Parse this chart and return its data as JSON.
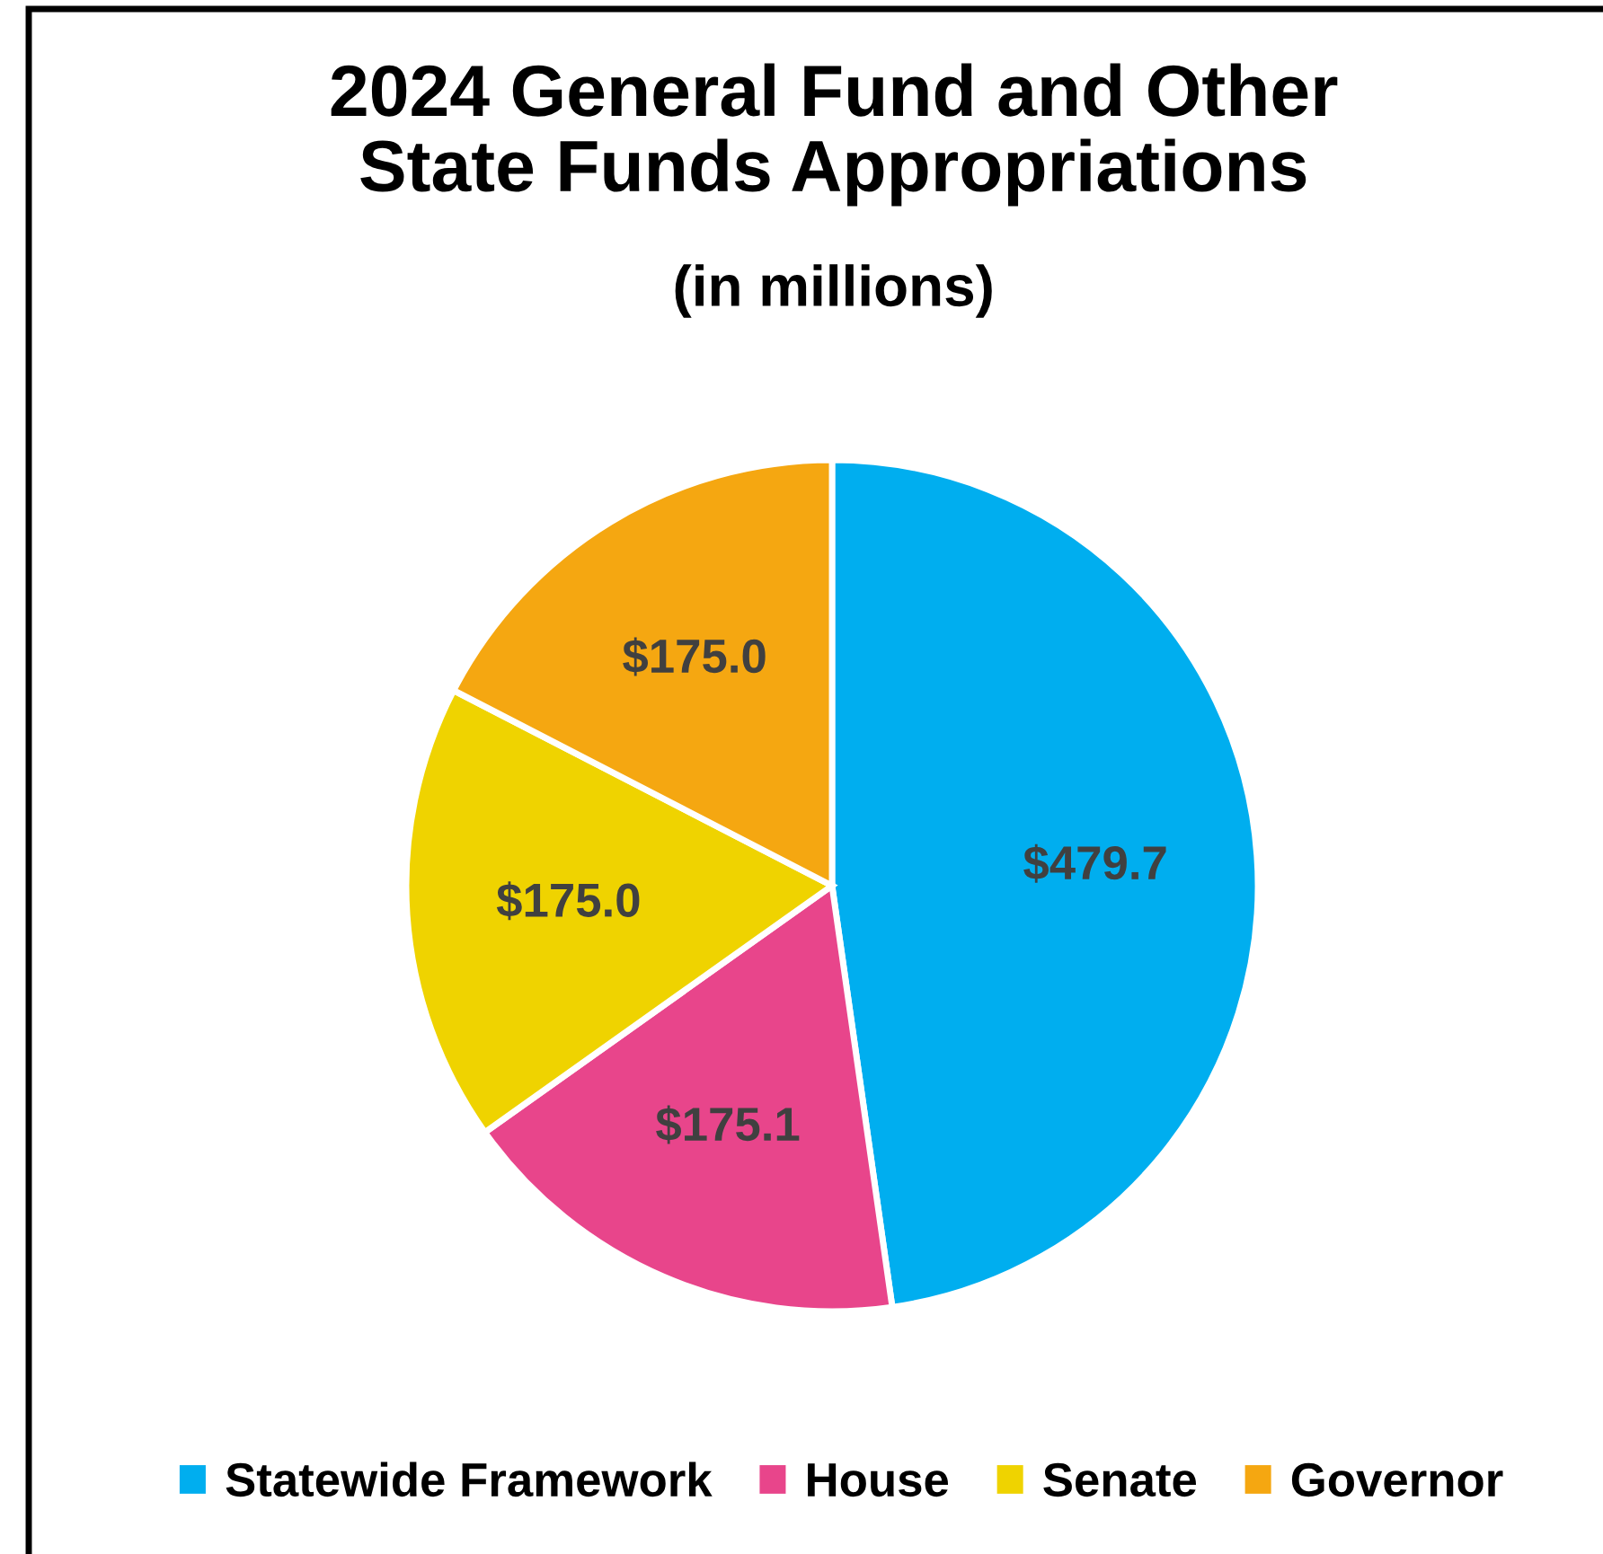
{
  "chart_data": {
    "type": "pie",
    "title": "2024 General Fund and Other\nState Funds Appropriations",
    "subtitle": "(in millions)",
    "categories": [
      "Statewide Framework",
      "House",
      "Senate",
      "Governor"
    ],
    "values": [
      479.7,
      175.1,
      175.0,
      175.0
    ],
    "colors": [
      "#00aeef",
      "#e8458b",
      "#efd300",
      "#f5a711"
    ],
    "value_labels": [
      "$479.7",
      "$175.1",
      "$175.0",
      "$175.0"
    ],
    "legend": "bottom"
  }
}
